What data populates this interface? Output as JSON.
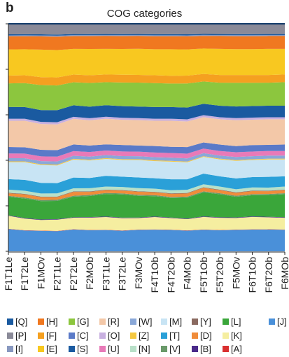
{
  "panel_label": "b",
  "chart_data": {
    "type": "area",
    "title": "COG categories",
    "xlabel": "",
    "ylabel": "",
    "ylim": [
      0,
      1
    ],
    "stacked": true,
    "grid": false,
    "categories": [
      "F1T1Le",
      "F1T2Le",
      "F1MOv",
      "F2T1Le",
      "F2T2Le",
      "F2MOb",
      "F3T1Le",
      "F3T2Le",
      "F3MOv",
      "F4T1Ob",
      "F4T2Ob",
      "F4MOb",
      "F5T1Ob",
      "F5T2Ob",
      "F5MOv",
      "F6T1Ob",
      "F6T2Ob",
      "F6MOb"
    ],
    "series_order_bottom_to_top": [
      "J",
      "A",
      "K",
      "B",
      "L",
      "V",
      "D",
      "Y",
      "N",
      "T",
      "M",
      "Z",
      "W",
      "U",
      "C",
      "R",
      "O",
      "S",
      "G",
      "F",
      "E",
      "H",
      "I",
      "Q",
      "P"
    ],
    "series": [
      {
        "name": "[J]",
        "color": "#4a90d9",
        "values": [
          0.085,
          0.08,
          0.078,
          0.075,
          0.085,
          0.082,
          0.083,
          0.08,
          0.084,
          0.083,
          0.082,
          0.079,
          0.085,
          0.082,
          0.083,
          0.084,
          0.085,
          0.084
        ]
      },
      {
        "name": "[A]",
        "color": "#d93030",
        "values": [
          0.001,
          0.001,
          0.001,
          0.001,
          0.001,
          0.001,
          0.001,
          0.001,
          0.001,
          0.001,
          0.001,
          0.001,
          0.001,
          0.001,
          0.001,
          0.001,
          0.001,
          0.001
        ]
      },
      {
        "name": "[K]",
        "color": "#f5eea0",
        "values": [
          0.05,
          0.045,
          0.04,
          0.042,
          0.045,
          0.048,
          0.05,
          0.048,
          0.045,
          0.048,
          0.045,
          0.043,
          0.05,
          0.048,
          0.045,
          0.048,
          0.047,
          0.046
        ]
      },
      {
        "name": "[B]",
        "color": "#4a2a8a",
        "values": [
          0.002,
          0.002,
          0.002,
          0.002,
          0.002,
          0.002,
          0.002,
          0.002,
          0.002,
          0.002,
          0.002,
          0.002,
          0.002,
          0.002,
          0.002,
          0.002,
          0.002,
          0.002
        ]
      },
      {
        "name": "[L]",
        "color": "#3aa63a",
        "values": [
          0.07,
          0.075,
          0.07,
          0.068,
          0.08,
          0.082,
          0.088,
          0.09,
          0.085,
          0.078,
          0.075,
          0.08,
          0.095,
          0.09,
          0.08,
          0.082,
          0.085,
          0.09
        ]
      },
      {
        "name": "[V]",
        "color": "#6a9a6a",
        "values": [
          0.004,
          0.004,
          0.004,
          0.004,
          0.004,
          0.004,
          0.004,
          0.004,
          0.004,
          0.004,
          0.004,
          0.004,
          0.004,
          0.004,
          0.004,
          0.004,
          0.004,
          0.004
        ]
      },
      {
        "name": "[D]",
        "color": "#f08c3a",
        "values": [
          0.01,
          0.012,
          0.011,
          0.01,
          0.015,
          0.012,
          0.011,
          0.011,
          0.012,
          0.011,
          0.012,
          0.012,
          0.014,
          0.012,
          0.011,
          0.012,
          0.011,
          0.012
        ]
      },
      {
        "name": "[Y]",
        "color": "#8a6a60",
        "values": [
          0.002,
          0.002,
          0.002,
          0.002,
          0.002,
          0.002,
          0.002,
          0.002,
          0.002,
          0.002,
          0.002,
          0.002,
          0.002,
          0.002,
          0.002,
          0.002,
          0.002,
          0.002
        ]
      },
      {
        "name": "[N]",
        "color": "#b8e0c8",
        "values": [
          0.012,
          0.012,
          0.012,
          0.012,
          0.012,
          0.012,
          0.012,
          0.012,
          0.012,
          0.012,
          0.012,
          0.012,
          0.012,
          0.012,
          0.012,
          0.012,
          0.012,
          0.012
        ]
      },
      {
        "name": "[T]",
        "color": "#2aa0d8",
        "values": [
          0.04,
          0.042,
          0.04,
          0.038,
          0.042,
          0.04,
          0.042,
          0.04,
          0.042,
          0.04,
          0.042,
          0.04,
          0.042,
          0.04,
          0.042,
          0.04,
          0.042,
          0.04
        ]
      },
      {
        "name": "[M]",
        "color": "#c8e4f4",
        "values": [
          0.065,
          0.068,
          0.068,
          0.066,
          0.07,
          0.068,
          0.066,
          0.065,
          0.068,
          0.066,
          0.068,
          0.065,
          0.066,
          0.066,
          0.068,
          0.066,
          0.068,
          0.066
        ]
      },
      {
        "name": "[Z]",
        "color": "#f5c840",
        "values": [
          0.003,
          0.003,
          0.003,
          0.003,
          0.003,
          0.003,
          0.003,
          0.003,
          0.003,
          0.003,
          0.003,
          0.003,
          0.003,
          0.003,
          0.003,
          0.003,
          0.003,
          0.003
        ]
      },
      {
        "name": "[W]",
        "color": "#8aa8d8",
        "values": [
          0.012,
          0.012,
          0.012,
          0.012,
          0.012,
          0.012,
          0.012,
          0.012,
          0.012,
          0.012,
          0.012,
          0.012,
          0.012,
          0.012,
          0.012,
          0.012,
          0.012,
          0.012
        ]
      },
      {
        "name": "[U]",
        "color": "#e87ab8",
        "values": [
          0.018,
          0.018,
          0.018,
          0.018,
          0.018,
          0.018,
          0.018,
          0.018,
          0.018,
          0.018,
          0.018,
          0.018,
          0.018,
          0.018,
          0.018,
          0.018,
          0.018,
          0.018
        ]
      },
      {
        "name": "[C]",
        "color": "#5a7ac8",
        "values": [
          0.025,
          0.024,
          0.025,
          0.024,
          0.026,
          0.025,
          0.024,
          0.025,
          0.024,
          0.025,
          0.024,
          0.025,
          0.024,
          0.025,
          0.024,
          0.025,
          0.024,
          0.025
        ]
      },
      {
        "name": "[R]",
        "color": "#f3c8a8",
        "values": [
          0.1,
          0.102,
          0.098,
          0.096,
          0.1,
          0.098,
          0.1,
          0.098,
          0.099,
          0.097,
          0.1,
          0.098,
          0.1,
          0.099,
          0.1,
          0.098,
          0.1,
          0.099
        ]
      },
      {
        "name": "[O]",
        "color": "#c8b0e0",
        "values": [
          0.008,
          0.008,
          0.008,
          0.008,
          0.008,
          0.008,
          0.008,
          0.008,
          0.008,
          0.008,
          0.008,
          0.008,
          0.008,
          0.008,
          0.008,
          0.008,
          0.008,
          0.008
        ]
      },
      {
        "name": "[S]",
        "color": "#1a5aa0",
        "values": [
          0.045,
          0.045,
          0.045,
          0.045,
          0.045,
          0.045,
          0.045,
          0.045,
          0.045,
          0.045,
          0.045,
          0.045,
          0.045,
          0.045,
          0.045,
          0.045,
          0.045,
          0.045
        ]
      },
      {
        "name": "[Q]",
        "color": "#1a5aa0",
        "values": [
          0.004,
          0.004,
          0.004,
          0.004,
          0.004,
          0.004,
          0.004,
          0.004,
          0.004,
          0.004,
          0.004,
          0.004,
          0.004,
          0.004,
          0.004,
          0.004,
          0.004,
          0.004
        ]
      },
      {
        "name": "[H]",
        "color": "#f07820",
        "values": [
          0.05,
          0.05,
          0.05,
          0.05,
          0.05,
          0.05,
          0.05,
          0.05,
          0.05,
          0.05,
          0.05,
          0.05,
          0.05,
          0.05,
          0.05,
          0.05,
          0.05,
          0.05
        ]
      },
      {
        "name": "[G]",
        "color": "#8cc63e",
        "values": [
          0.09,
          0.092,
          0.095,
          0.092,
          0.09,
          0.092,
          0.09,
          0.092,
          0.094,
          0.092,
          0.09,
          0.092,
          0.088,
          0.09,
          0.092,
          0.09,
          0.09,
          0.092
        ]
      },
      {
        "name": "[P]",
        "color": "#8a8a98",
        "values": [
          0.04,
          0.04,
          0.04,
          0.04,
          0.04,
          0.04,
          0.04,
          0.04,
          0.04,
          0.04,
          0.04,
          0.04,
          0.04,
          0.04,
          0.04,
          0.04,
          0.04,
          0.04
        ]
      },
      {
        "name": "[F]",
        "color": "#f5a020",
        "values": [
          0.03,
          0.03,
          0.03,
          0.03,
          0.03,
          0.03,
          0.03,
          0.03,
          0.03,
          0.03,
          0.03,
          0.03,
          0.03,
          0.03,
          0.03,
          0.03,
          0.03,
          0.03
        ]
      },
      {
        "name": "[E]",
        "color": "#f8c820",
        "values": [
          0.1,
          0.1,
          0.105,
          0.102,
          0.1,
          0.102,
          0.1,
          0.1,
          0.102,
          0.1,
          0.102,
          0.1,
          0.1,
          0.102,
          0.1,
          0.1,
          0.102,
          0.1
        ]
      },
      {
        "name": "[I]",
        "color": "#8898c0",
        "values": [
          0.004,
          0.004,
          0.004,
          0.004,
          0.004,
          0.004,
          0.004,
          0.004,
          0.004,
          0.004,
          0.004,
          0.004,
          0.004,
          0.004,
          0.004,
          0.004,
          0.004,
          0.004
        ]
      }
    ],
    "legend_position": "bottom",
    "legend_rows": [
      [
        "[Q]",
        "[H]",
        "[G]",
        "[R]",
        "[W]",
        "[M]",
        "[Y]",
        "[L]",
        "[J]"
      ],
      [
        "[P]",
        "[F]",
        "[C]",
        "[O]",
        "[Z]",
        "[T]",
        "[D]",
        "[K]"
      ],
      [
        "[I]",
        "[E]",
        "[S]",
        "[U]",
        "[N]",
        "[V]",
        "[B]",
        "[A]"
      ]
    ]
  }
}
